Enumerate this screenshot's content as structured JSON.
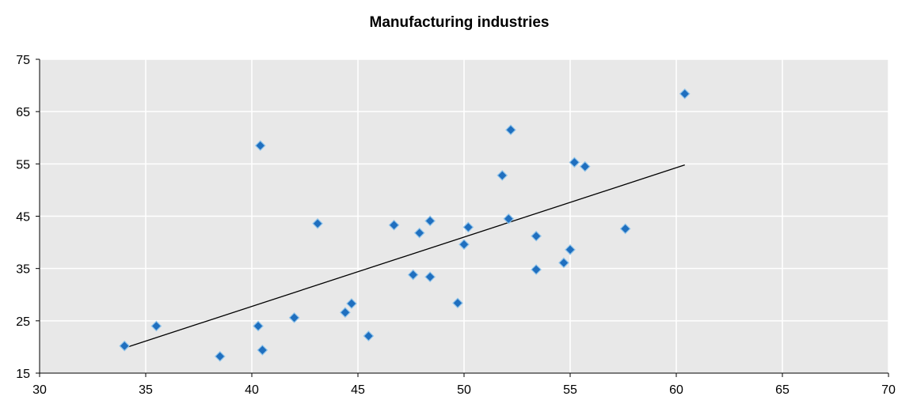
{
  "chart_data": {
    "type": "scatter",
    "title": "Manufacturing industries",
    "xlabel": "",
    "ylabel": "",
    "xlim": [
      30,
      70
    ],
    "ylim": [
      15,
      75
    ],
    "xticks": [
      30,
      35,
      40,
      45,
      50,
      55,
      60,
      65,
      70
    ],
    "yticks": [
      15,
      25,
      35,
      45,
      55,
      65,
      75
    ],
    "grid": true,
    "legend": "none",
    "colors": {
      "point": "#1f6fbf",
      "point_edge": "#8fc3ea",
      "trendline": "#000000",
      "plot_bg": "#e8e8e8",
      "grid": "#ffffff"
    },
    "series": [
      {
        "points": [
          [
            34.0,
            20.2
          ],
          [
            35.5,
            24.0
          ],
          [
            38.5,
            18.2
          ],
          [
            40.3,
            24.0
          ],
          [
            40.4,
            58.5
          ],
          [
            40.5,
            19.4
          ],
          [
            42.0,
            25.6
          ],
          [
            43.1,
            43.6
          ],
          [
            44.4,
            26.6
          ],
          [
            44.7,
            28.3
          ],
          [
            45.5,
            22.1
          ],
          [
            46.7,
            43.3
          ],
          [
            47.6,
            33.8
          ],
          [
            47.9,
            41.8
          ],
          [
            48.4,
            44.1
          ],
          [
            48.4,
            33.4
          ],
          [
            49.7,
            28.4
          ],
          [
            50.0,
            39.6
          ],
          [
            50.2,
            42.9
          ],
          [
            51.8,
            52.8
          ],
          [
            52.1,
            44.5
          ],
          [
            52.2,
            61.5
          ],
          [
            53.4,
            41.2
          ],
          [
            53.4,
            34.8
          ],
          [
            54.7,
            36.1
          ],
          [
            55.0,
            38.6
          ],
          [
            55.2,
            55.3
          ],
          [
            55.7,
            54.5
          ],
          [
            57.6,
            42.6
          ],
          [
            60.4,
            68.4
          ]
        ]
      }
    ],
    "trendline": {
      "x": [
        34.0,
        60.4
      ],
      "y": [
        19.8,
        54.8
      ]
    }
  }
}
